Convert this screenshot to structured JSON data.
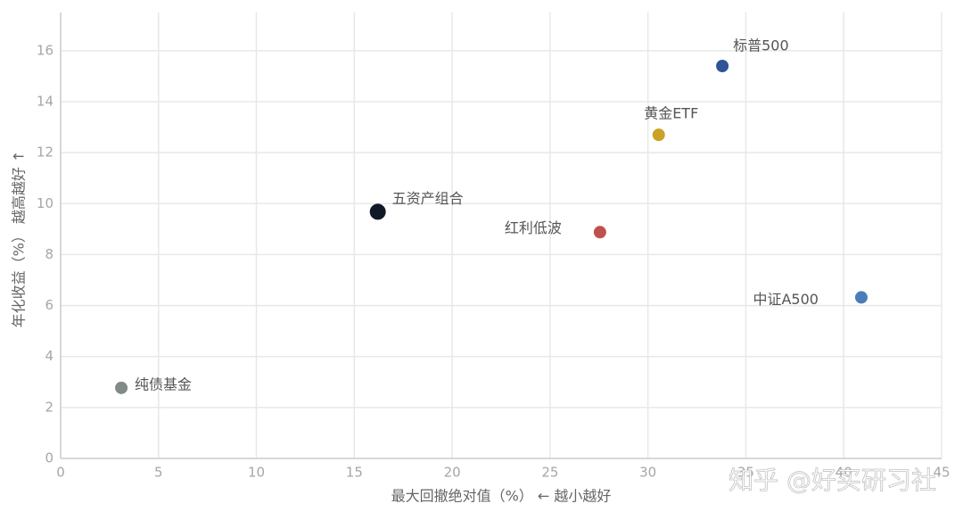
{
  "chart_data": {
    "type": "scatter",
    "xlabel": "最大回撤绝对值（%） ← 越小越好",
    "ylabel": "年化收益（%） 越高越好 ↑",
    "labels": [
      "纯债基金",
      "五资产组合",
      "红利低波",
      "黄金ETF",
      "标普500",
      "中证A500"
    ],
    "x": [
      3.1,
      16.2,
      27.55,
      30.55,
      33.8,
      40.9
    ],
    "values": [
      2.77,
      9.68,
      8.88,
      12.7,
      15.4,
      6.32
    ],
    "colors": [
      "#818a87",
      "#111827",
      "#c0504d",
      "#c9a227",
      "#2f5597",
      "#4a7ebb"
    ],
    "xlim": [
      0,
      45
    ],
    "xticks": [
      0,
      5,
      10,
      15,
      20,
      25,
      30,
      35,
      40,
      45
    ],
    "ylim": [
      0,
      17.5
    ],
    "yticks": [
      0,
      2,
      4,
      6,
      8,
      10,
      12,
      14,
      16
    ],
    "grid": true,
    "watermark": "知乎 @好买研习社"
  }
}
